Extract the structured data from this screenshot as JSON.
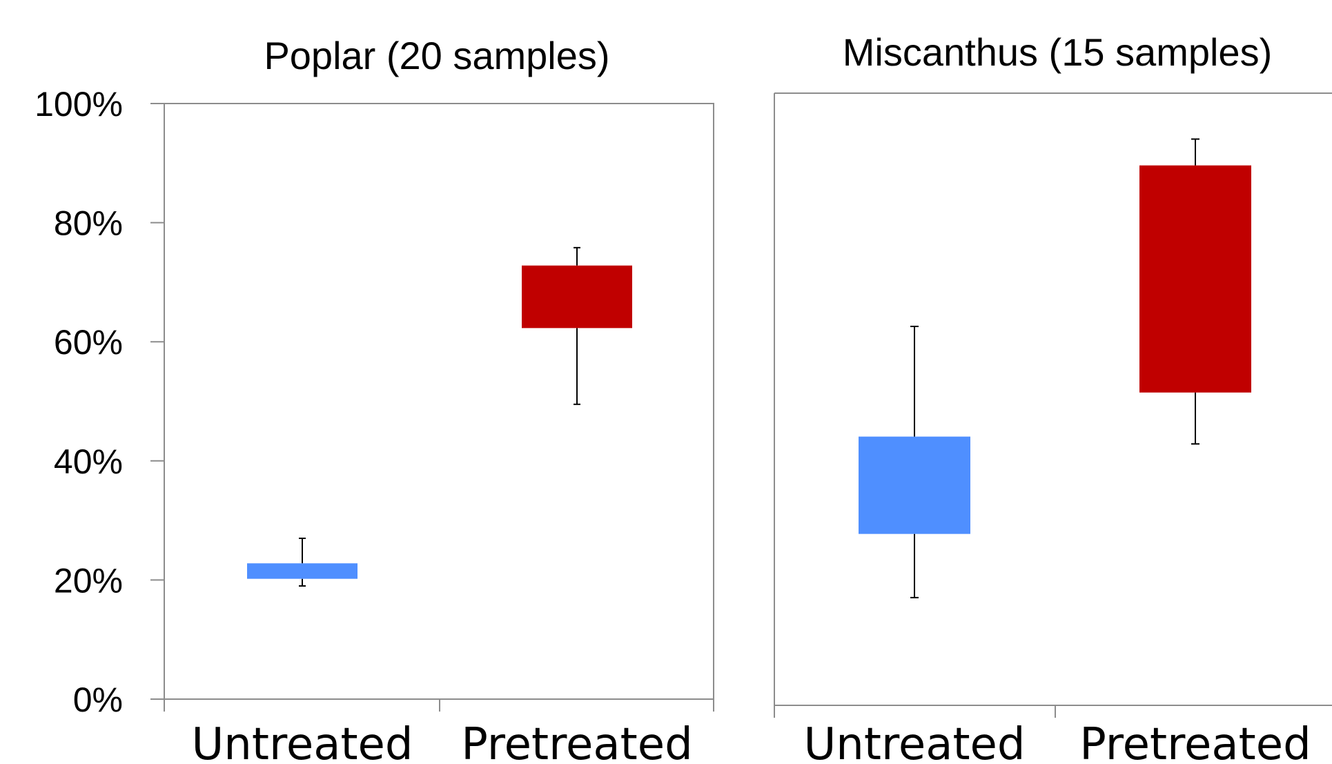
{
  "chart_data": [
    {
      "type": "box",
      "title": "Poplar (20 samples)",
      "xlabel": "",
      "ylabel": "",
      "ylim": [
        0,
        100
      ],
      "yticks": [
        "0%",
        "20%",
        "40%",
        "60%",
        "80%",
        "100%"
      ],
      "categories": [
        "Untreated",
        "Pretreated"
      ],
      "boxes": [
        {
          "category": "Untreated",
          "min": 19,
          "q1": 20.2,
          "q3": 22.8,
          "max": 27,
          "color": "#4F8FFF"
        },
        {
          "category": "Pretreated",
          "min": 49.5,
          "q1": 62.3,
          "q3": 72.8,
          "max": 75.8,
          "color": "#C00000"
        }
      ],
      "grid": false,
      "frame": "box"
    },
    {
      "type": "box",
      "title": "Miscanthus (15 samples)",
      "xlabel": "",
      "ylabel": "",
      "ylim": [
        0,
        100
      ],
      "categories": [
        "Untreated",
        "Pretreated"
      ],
      "boxes": [
        {
          "category": "Untreated",
          "min": 17.6,
          "q1": 28,
          "q3": 43.9,
          "max": 61.9,
          "color": "#4F8FFF"
        },
        {
          "category": "Pretreated",
          "min": 42.7,
          "q1": 51.1,
          "q3": 88.2,
          "max": 92.5,
          "color": "#C00000"
        }
      ],
      "grid": false,
      "frame": "open-right"
    }
  ]
}
